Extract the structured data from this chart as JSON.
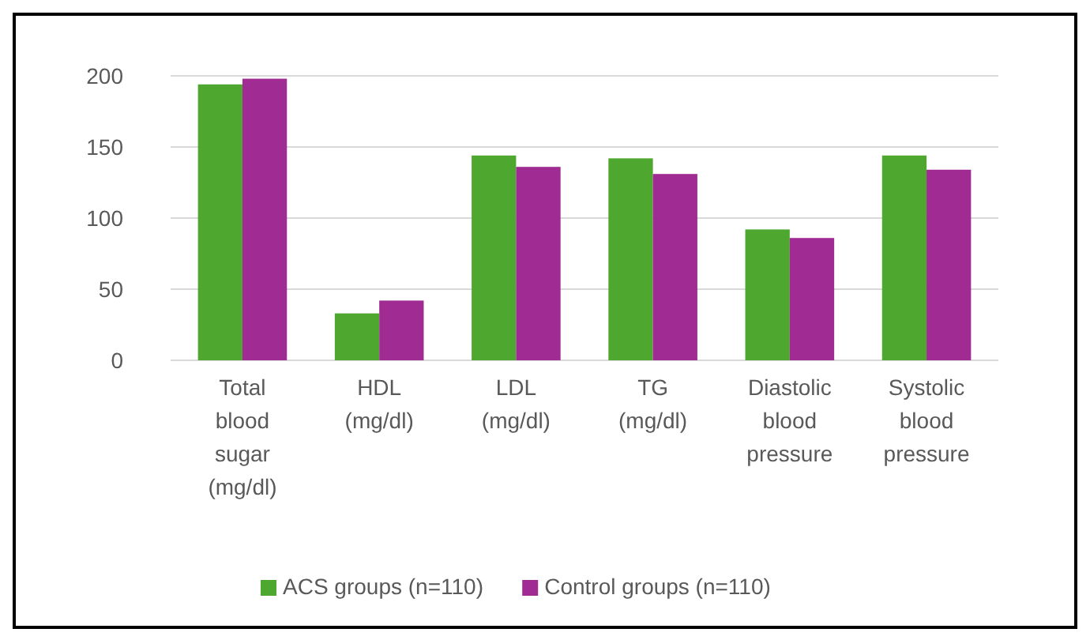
{
  "chart_data": {
    "type": "bar",
    "categories": [
      "Total blood sugar (mg/dl)",
      "HDL (mg/dl)",
      "LDL (mg/dl)",
      "TG (mg/dl)",
      "Diastolic blood pressure",
      "Systolic blood pressure"
    ],
    "series": [
      {
        "name": "ACS groups (n=110)",
        "color": "#4ea72e",
        "values": [
          194,
          33,
          144,
          142,
          92,
          144
        ]
      },
      {
        "name": "Control groups (n=110)",
        "color": "#a02b93",
        "values": [
          198,
          42,
          136,
          131,
          86,
          134
        ]
      }
    ],
    "ylim": [
      0,
      200
    ],
    "yticks": [
      0,
      50,
      100,
      150,
      200
    ],
    "grid": "y",
    "legend": "bottom"
  }
}
